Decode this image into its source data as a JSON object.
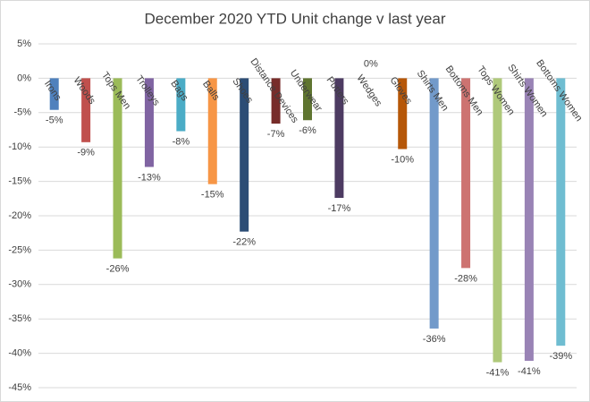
{
  "chart_data": {
    "type": "bar",
    "title": "December 2020 YTD Unit change v last year",
    "categories": [
      "Irons",
      "Woods",
      "Tops Men",
      "Trolleys",
      "Bags",
      "Balls",
      "Shoes",
      "Distance Devices",
      "Underwear",
      "Putters",
      "Wedges",
      "Gloves",
      "Shirts Men",
      "Bottoms Men",
      "Tops Women",
      "Shirts Women",
      "Bottoms Women"
    ],
    "values": [
      -4.6,
      -9.3,
      -26.2,
      -12.9,
      -7.7,
      -15.4,
      -22.3,
      -6.6,
      -6.1,
      -17.4,
      0,
      -10.3,
      -36.4,
      -27.6,
      -41.3,
      -41.1,
      -38.9
    ],
    "value_labels": [
      "-5%",
      "-9%",
      "-26%",
      "-13%",
      "-8%",
      "-15%",
      "-22%",
      "-7%",
      "-6%",
      "-17%",
      "0%",
      "-10%",
      "-36%",
      "-28%",
      "-41%",
      "-41%",
      "-39%"
    ],
    "colors": [
      "#4f81bd",
      "#c0504d",
      "#9bbb59",
      "#8064a2",
      "#4bacc6",
      "#f79646",
      "#2c4d75",
      "#772c2a",
      "#5f7530",
      "#4d3b62",
      "#276a7c",
      "#b65708",
      "#729aca",
      "#cd7371",
      "#afc97a",
      "#9983b5",
      "#6fbdd1"
    ],
    "ylim": [
      -45,
      5
    ],
    "yticks": [
      {
        "value": 5,
        "label": "5%"
      },
      {
        "value": 0,
        "label": "0%"
      },
      {
        "value": -5,
        "label": "-5%"
      },
      {
        "value": -10,
        "label": "-10%"
      },
      {
        "value": -15,
        "label": "-15%"
      },
      {
        "value": -20,
        "label": "-20%"
      },
      {
        "value": -25,
        "label": "-25%"
      },
      {
        "value": -30,
        "label": "-30%"
      },
      {
        "value": -35,
        "label": "-35%"
      },
      {
        "value": -40,
        "label": "-40%"
      },
      {
        "value": -45,
        "label": "-45%"
      }
    ],
    "grid": true
  }
}
